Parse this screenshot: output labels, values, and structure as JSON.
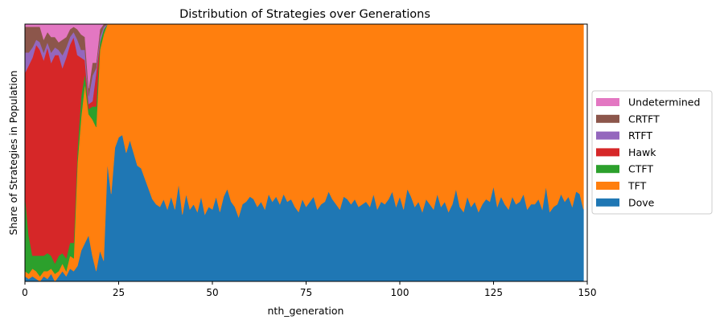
{
  "chart_data": {
    "type": "area",
    "stacked": true,
    "normalized": true,
    "title": "Distribution of Strategies over Generations",
    "xlabel": "nth_generation",
    "ylabel": "Share of Strategies in Population",
    "xlim": [
      0,
      150
    ],
    "ylim": [
      0,
      1
    ],
    "xticks": [
      "0",
      "25",
      "50",
      "75",
      "100",
      "125",
      "150"
    ],
    "yticks_shown": false,
    "grid": false,
    "legend_position": "right",
    "legend_order": [
      "Undetermined",
      "CRTFT",
      "RTFT",
      "Hawk",
      "CTFT",
      "TFT",
      "Dove"
    ],
    "x": [
      0,
      1,
      2,
      3,
      4,
      5,
      6,
      7,
      8,
      9,
      10,
      11,
      12,
      13,
      14,
      15,
      16,
      17,
      18,
      19,
      20,
      21,
      22,
      23,
      24,
      25,
      26,
      27,
      28,
      29,
      30,
      31,
      32,
      33,
      34,
      35,
      36,
      37,
      38,
      39,
      40,
      41,
      42,
      43,
      44,
      45,
      46,
      47,
      48,
      49,
      50,
      51,
      52,
      53,
      54,
      55,
      56,
      57,
      58,
      59,
      60,
      61,
      62,
      63,
      64,
      65,
      66,
      67,
      68,
      69,
      70,
      71,
      72,
      73,
      74,
      75,
      76,
      77,
      78,
      79,
      80,
      81,
      82,
      83,
      84,
      85,
      86,
      87,
      88,
      89,
      90,
      91,
      92,
      93,
      94,
      95,
      96,
      97,
      98,
      99,
      100,
      101,
      102,
      103,
      104,
      105,
      106,
      107,
      108,
      109,
      110,
      111,
      112,
      113,
      114,
      115,
      116,
      117,
      118,
      119,
      120,
      121,
      122,
      123,
      124,
      125,
      126,
      127,
      128,
      129,
      130,
      131,
      132,
      133,
      134,
      135,
      136,
      137,
      138,
      139,
      140,
      141,
      142,
      143,
      144,
      145,
      146,
      147,
      148,
      149
    ],
    "series": [
      {
        "name": "Dove",
        "color": "#1f77b4",
        "values": [
          0.02,
          0.01,
          0.02,
          0.01,
          0.0,
          0.02,
          0.01,
          0.03,
          0.0,
          0.02,
          0.04,
          0.02,
          0.05,
          0.04,
          0.06,
          0.12,
          0.15,
          0.18,
          0.1,
          0.04,
          0.12,
          0.08,
          0.46,
          0.34,
          0.52,
          0.56,
          0.57,
          0.5,
          0.55,
          0.5,
          0.45,
          0.44,
          0.4,
          0.36,
          0.32,
          0.3,
          0.29,
          0.32,
          0.28,
          0.33,
          0.28,
          0.38,
          0.26,
          0.34,
          0.28,
          0.3,
          0.27,
          0.33,
          0.26,
          0.29,
          0.28,
          0.33,
          0.27,
          0.33,
          0.36,
          0.31,
          0.29,
          0.25,
          0.3,
          0.31,
          0.33,
          0.32,
          0.29,
          0.31,
          0.28,
          0.34,
          0.31,
          0.33,
          0.3,
          0.34,
          0.31,
          0.32,
          0.29,
          0.27,
          0.32,
          0.29,
          0.31,
          0.33,
          0.28,
          0.3,
          0.31,
          0.35,
          0.32,
          0.3,
          0.28,
          0.33,
          0.32,
          0.3,
          0.32,
          0.29,
          0.3,
          0.31,
          0.29,
          0.34,
          0.28,
          0.31,
          0.3,
          0.32,
          0.35,
          0.29,
          0.33,
          0.28,
          0.36,
          0.33,
          0.29,
          0.31,
          0.27,
          0.32,
          0.3,
          0.28,
          0.34,
          0.29,
          0.31,
          0.27,
          0.3,
          0.36,
          0.29,
          0.27,
          0.33,
          0.29,
          0.31,
          0.27,
          0.3,
          0.32,
          0.31,
          0.37,
          0.29,
          0.33,
          0.3,
          0.28,
          0.33,
          0.3,
          0.31,
          0.34,
          0.28,
          0.3,
          0.3,
          0.32,
          0.28,
          0.37,
          0.27,
          0.29,
          0.3,
          0.34,
          0.31,
          0.33,
          0.29,
          0.35,
          0.34,
          0.28
        ]
      },
      {
        "name": "TFT",
        "color": "#ff7f0e",
        "values": [
          0.02,
          0.02,
          0.03,
          0.03,
          0.02,
          0.02,
          0.03,
          0.02,
          0.03,
          0.02,
          0.03,
          0.02,
          0.05,
          0.05,
          0.4,
          0.52,
          0.62,
          0.47,
          0.53,
          0.56,
          0.78,
          0.88,
          0.54,
          0.66,
          0.48,
          0.44,
          0.43,
          0.5,
          0.45,
          0.5,
          0.55,
          0.56,
          0.6,
          0.64,
          0.68,
          0.7,
          0.71,
          0.68,
          0.72,
          0.67,
          0.72,
          0.62,
          0.74,
          0.66,
          0.72,
          0.7,
          0.73,
          0.67,
          0.74,
          0.71,
          0.72,
          0.67,
          0.73,
          0.67,
          0.64,
          0.69,
          0.71,
          0.75,
          0.7,
          0.69,
          0.67,
          0.68,
          0.71,
          0.69,
          0.72,
          0.66,
          0.69,
          0.67,
          0.7,
          0.66,
          0.69,
          0.68,
          0.71,
          0.73,
          0.68,
          0.71,
          0.69,
          0.67,
          0.72,
          0.7,
          0.69,
          0.65,
          0.68,
          0.7,
          0.72,
          0.67,
          0.68,
          0.7,
          0.68,
          0.71,
          0.7,
          0.69,
          0.71,
          0.66,
          0.72,
          0.69,
          0.7,
          0.68,
          0.65,
          0.71,
          0.67,
          0.72,
          0.64,
          0.67,
          0.71,
          0.69,
          0.73,
          0.68,
          0.7,
          0.72,
          0.66,
          0.71,
          0.69,
          0.73,
          0.7,
          0.64,
          0.71,
          0.73,
          0.67,
          0.71,
          0.69,
          0.73,
          0.7,
          0.68,
          0.69,
          0.63,
          0.71,
          0.67,
          0.7,
          0.72,
          0.67,
          0.7,
          0.69,
          0.66,
          0.72,
          0.7,
          0.7,
          0.68,
          0.72,
          0.63,
          0.73,
          0.71,
          0.7,
          0.66,
          0.69,
          0.67,
          0.71,
          0.65,
          0.66,
          0.72
        ]
      },
      {
        "name": "CTFT",
        "color": "#2ca02c",
        "values": [
          0.3,
          0.15,
          0.05,
          0.06,
          0.08,
          0.06,
          0.07,
          0.05,
          0.04,
          0.06,
          0.04,
          0.05,
          0.05,
          0.06,
          0.05,
          0.08,
          0.04,
          0.02,
          0.05,
          0.08,
          0.03,
          0.02,
          0.0,
          0.0,
          0.0,
          0.0,
          0.0,
          0.0,
          0.0,
          0.0,
          0.0,
          0.0,
          0.0,
          0.0,
          0.0,
          0.0,
          0.0,
          0.0,
          0.0,
          0.0,
          0.0,
          0.0,
          0.0,
          0.0,
          0.0,
          0.0,
          0.0,
          0.0,
          0.0,
          0.0,
          0.0,
          0.0,
          0.0,
          0.0,
          0.0,
          0.0,
          0.0,
          0.0,
          0.0,
          0.0,
          0.0,
          0.0,
          0.0,
          0.0,
          0.0,
          0.0,
          0.0,
          0.0,
          0.0,
          0.0,
          0.0,
          0.0,
          0.0,
          0.0,
          0.0,
          0.0,
          0.0,
          0.0,
          0.0,
          0.0,
          0.0,
          0.0,
          0.0,
          0.0,
          0.0,
          0.0,
          0.0,
          0.0,
          0.0,
          0.0,
          0.0,
          0.0,
          0.0,
          0.0,
          0.0,
          0.0,
          0.0,
          0.0,
          0.0,
          0.0,
          0.0,
          0.0,
          0.0,
          0.0,
          0.0,
          0.0,
          0.0,
          0.0,
          0.0,
          0.0,
          0.0,
          0.0,
          0.0,
          0.0,
          0.0,
          0.0,
          0.0,
          0.0,
          0.0,
          0.0,
          0.0,
          0.0,
          0.0,
          0.0,
          0.0,
          0.0,
          0.0,
          0.0,
          0.0,
          0.0,
          0.0,
          0.0,
          0.0,
          0.0,
          0.0,
          0.0,
          0.0,
          0.0,
          0.0,
          0.0,
          0.0,
          0.0,
          0.0,
          0.0,
          0.0,
          0.0,
          0.0,
          0.0,
          0.0,
          0.0
        ]
      },
      {
        "name": "Hawk",
        "color": "#d62728",
        "values": [
          0.47,
          0.66,
          0.77,
          0.82,
          0.8,
          0.76,
          0.8,
          0.75,
          0.81,
          0.78,
          0.72,
          0.78,
          0.77,
          0.8,
          0.37,
          0.15,
          0.05,
          0.02,
          0.02,
          0.13,
          0.0,
          0.0,
          0.0,
          0.0,
          0.0,
          0.0,
          0.0,
          0.0,
          0.0,
          0.0,
          0.0,
          0.0,
          0.0,
          0.0,
          0.0,
          0.0,
          0.0,
          0.0,
          0.0,
          0.0,
          0.0,
          0.0,
          0.0,
          0.0,
          0.0,
          0.0,
          0.0,
          0.0,
          0.0,
          0.0,
          0.0,
          0.0,
          0.0,
          0.0,
          0.0,
          0.0,
          0.0,
          0.0,
          0.0,
          0.0,
          0.0,
          0.0,
          0.0,
          0.0,
          0.0,
          0.0,
          0.0,
          0.0,
          0.0,
          0.0,
          0.0,
          0.0,
          0.0,
          0.0,
          0.0,
          0.0,
          0.0,
          0.0,
          0.0,
          0.0,
          0.0,
          0.0,
          0.0,
          0.0,
          0.0,
          0.0,
          0.0,
          0.0,
          0.0,
          0.0,
          0.0,
          0.0,
          0.0,
          0.0,
          0.0,
          0.0,
          0.0,
          0.0,
          0.0,
          0.0,
          0.0,
          0.0,
          0.0,
          0.0,
          0.0,
          0.0,
          0.0,
          0.0,
          0.0,
          0.0,
          0.0,
          0.0,
          0.0,
          0.0,
          0.0,
          0.0,
          0.0,
          0.0,
          0.0,
          0.0,
          0.0,
          0.0,
          0.0,
          0.0,
          0.0,
          0.0,
          0.0,
          0.0,
          0.0,
          0.0,
          0.0,
          0.0,
          0.0,
          0.0,
          0.0,
          0.0,
          0.0,
          0.0,
          0.0,
          0.0,
          0.0,
          0.0,
          0.0,
          0.0,
          0.0,
          0.0,
          0.0,
          0.0,
          0.0,
          0.0
        ]
      },
      {
        "name": "RTFT",
        "color": "#9467bd",
        "values": [
          0.08,
          0.05,
          0.04,
          0.02,
          0.03,
          0.03,
          0.02,
          0.04,
          0.03,
          0.02,
          0.05,
          0.04,
          0.03,
          0.02,
          0.06,
          0.03,
          0.04,
          0.03,
          0.1,
          0.02,
          0.02,
          0.01,
          0.0,
          0.0,
          0.0,
          0.0,
          0.0,
          0.0,
          0.0,
          0.0,
          0.0,
          0.0,
          0.0,
          0.0,
          0.0,
          0.0,
          0.0,
          0.0,
          0.0,
          0.0,
          0.0,
          0.0,
          0.0,
          0.0,
          0.0,
          0.0,
          0.0,
          0.0,
          0.0,
          0.0,
          0.0,
          0.0,
          0.0,
          0.0,
          0.0,
          0.0,
          0.0,
          0.0,
          0.0,
          0.0,
          0.0,
          0.0,
          0.0,
          0.0,
          0.0,
          0.0,
          0.0,
          0.0,
          0.0,
          0.0,
          0.0,
          0.0,
          0.0,
          0.0,
          0.0,
          0.0,
          0.0,
          0.0,
          0.0,
          0.0,
          0.0,
          0.0,
          0.0,
          0.0,
          0.0,
          0.0,
          0.0,
          0.0,
          0.0,
          0.0,
          0.0,
          0.0,
          0.0,
          0.0,
          0.0,
          0.0,
          0.0,
          0.0,
          0.0,
          0.0,
          0.0,
          0.0,
          0.0,
          0.0,
          0.0,
          0.0,
          0.0,
          0.0,
          0.0,
          0.0,
          0.0,
          0.0,
          0.0,
          0.0,
          0.0,
          0.0,
          0.0,
          0.0,
          0.0,
          0.0,
          0.0,
          0.0,
          0.0,
          0.0,
          0.0,
          0.0,
          0.0,
          0.0,
          0.0,
          0.0,
          0.0,
          0.0,
          0.0,
          0.0,
          0.0,
          0.0,
          0.0,
          0.0,
          0.0,
          0.0,
          0.0,
          0.0,
          0.0,
          0.0,
          0.0,
          0.0,
          0.0,
          0.0,
          0.0,
          0.0
        ]
      },
      {
        "name": "CRTFT",
        "color": "#8c564b",
        "values": [
          0.1,
          0.1,
          0.08,
          0.05,
          0.06,
          0.05,
          0.04,
          0.06,
          0.04,
          0.03,
          0.06,
          0.04,
          0.03,
          0.02,
          0.04,
          0.06,
          0.05,
          0.03,
          0.05,
          0.02,
          0.03,
          0.01,
          0.0,
          0.0,
          0.0,
          0.0,
          0.0,
          0.0,
          0.0,
          0.0,
          0.0,
          0.0,
          0.0,
          0.0,
          0.0,
          0.0,
          0.0,
          0.0,
          0.0,
          0.0,
          0.0,
          0.0,
          0.0,
          0.0,
          0.0,
          0.0,
          0.0,
          0.0,
          0.0,
          0.0,
          0.0,
          0.0,
          0.0,
          0.0,
          0.0,
          0.0,
          0.0,
          0.0,
          0.0,
          0.0,
          0.0,
          0.0,
          0.0,
          0.0,
          0.0,
          0.0,
          0.0,
          0.0,
          0.0,
          0.0,
          0.0,
          0.0,
          0.0,
          0.0,
          0.0,
          0.0,
          0.0,
          0.0,
          0.0,
          0.0,
          0.0,
          0.0,
          0.0,
          0.0,
          0.0,
          0.0,
          0.0,
          0.0,
          0.0,
          0.0,
          0.0,
          0.0,
          0.0,
          0.0,
          0.0,
          0.0,
          0.0,
          0.0,
          0.0,
          0.0,
          0.0,
          0.0,
          0.0,
          0.0,
          0.0,
          0.0,
          0.0,
          0.0,
          0.0,
          0.0,
          0.0,
          0.0,
          0.0,
          0.0,
          0.0,
          0.0,
          0.0,
          0.0,
          0.0,
          0.0,
          0.0,
          0.0,
          0.0,
          0.0,
          0.0,
          0.0,
          0.0,
          0.0,
          0.0,
          0.0,
          0.0,
          0.0,
          0.0,
          0.0,
          0.0,
          0.0,
          0.0,
          0.0,
          0.0,
          0.0,
          0.0,
          0.0,
          0.0,
          0.0,
          0.0,
          0.0,
          0.0,
          0.0,
          0.0,
          0.0
        ]
      },
      {
        "name": "Undetermined",
        "color": "#e377c2",
        "values": [
          0.01,
          0.01,
          0.01,
          0.01,
          0.01,
          0.06,
          0.03,
          0.05,
          0.05,
          0.07,
          0.06,
          0.05,
          0.02,
          0.01,
          0.02,
          0.04,
          0.05,
          0.25,
          0.15,
          0.15,
          0.02,
          0.0,
          0.0,
          0.0,
          0.0,
          0.0,
          0.0,
          0.0,
          0.0,
          0.0,
          0.0,
          0.0,
          0.0,
          0.0,
          0.0,
          0.0,
          0.0,
          0.0,
          0.0,
          0.0,
          0.0,
          0.0,
          0.0,
          0.0,
          0.0,
          0.0,
          0.0,
          0.0,
          0.0,
          0.0,
          0.0,
          0.0,
          0.0,
          0.0,
          0.0,
          0.0,
          0.0,
          0.0,
          0.0,
          0.0,
          0.0,
          0.0,
          0.0,
          0.0,
          0.0,
          0.0,
          0.0,
          0.0,
          0.0,
          0.0,
          0.0,
          0.0,
          0.0,
          0.0,
          0.0,
          0.0,
          0.0,
          0.0,
          0.0,
          0.0,
          0.0,
          0.0,
          0.0,
          0.0,
          0.0,
          0.0,
          0.0,
          0.0,
          0.0,
          0.0,
          0.0,
          0.0,
          0.0,
          0.0,
          0.0,
          0.0,
          0.0,
          0.0,
          0.0,
          0.0,
          0.0,
          0.0,
          0.0,
          0.0,
          0.0,
          0.0,
          0.0,
          0.0,
          0.0,
          0.0,
          0.0,
          0.0,
          0.0,
          0.0,
          0.0,
          0.0,
          0.0,
          0.0,
          0.0,
          0.0,
          0.0,
          0.0,
          0.0,
          0.0,
          0.0,
          0.0,
          0.0,
          0.0,
          0.0,
          0.0,
          0.0,
          0.0,
          0.0,
          0.0,
          0.0,
          0.0,
          0.0,
          0.0,
          0.0,
          0.0,
          0.0,
          0.0,
          0.0,
          0.0,
          0.0,
          0.0,
          0.0,
          0.0,
          0.0,
          0.0
        ]
      }
    ]
  }
}
